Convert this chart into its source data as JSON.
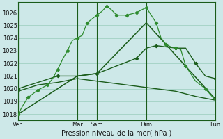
{
  "xlabel": "Pression niveau de la mer( hPa )",
  "bg_color": "#cde8e8",
  "grid_color": "#99ccbb",
  "line_color_dark": "#1a5c1a",
  "line_color_light": "#2e8b2e",
  "ylim": [
    1017.5,
    1026.8
  ],
  "xlim": [
    0,
    20
  ],
  "yticks": [
    1018,
    1019,
    1020,
    1021,
    1022,
    1023,
    1024,
    1025,
    1026
  ],
  "day_vlines": [
    0,
    6,
    8,
    13,
    20
  ],
  "xtick_positions": [
    0,
    6,
    8,
    13,
    20
  ],
  "xtick_labels": [
    "Ven",
    "Mar",
    "Sam",
    "Dim",
    "Lun"
  ],
  "s1_x": [
    0,
    0.5,
    1,
    1.5,
    2,
    2.5,
    3,
    3.5,
    4,
    4.5,
    5,
    5.5,
    6,
    6.5,
    7,
    7.5,
    8,
    8.5,
    9,
    9.5,
    10,
    10.5,
    11,
    11.5,
    12,
    12.5,
    13,
    13.5,
    14,
    14.5,
    15,
    15.5,
    16,
    16.5,
    17,
    18,
    19,
    20
  ],
  "s1_y": [
    1018.0,
    1018.7,
    1019.3,
    1019.6,
    1019.9,
    1020.1,
    1020.3,
    1020.8,
    1021.5,
    1022.3,
    1023.0,
    1023.8,
    1024.0,
    1024.2,
    1025.2,
    1025.5,
    1025.8,
    1026.1,
    1026.5,
    1026.2,
    1025.8,
    1025.8,
    1025.8,
    1025.9,
    1026.0,
    1026.2,
    1026.4,
    1025.8,
    1025.2,
    1024.0,
    1023.5,
    1023.3,
    1023.2,
    1023.1,
    1021.8,
    1020.6,
    1020.0,
    1019.1
  ],
  "s2_x": [
    0,
    6,
    8,
    13,
    20
  ],
  "s2_y": [
    1018.0,
    1021.0,
    1021.2,
    1025.2,
    1019.2
  ],
  "s3_x": [
    0,
    2,
    4,
    6,
    8,
    10,
    12,
    13,
    14,
    15,
    16,
    17,
    18,
    19,
    20
  ],
  "s3_y": [
    1020.0,
    1020.5,
    1021.0,
    1021.0,
    1021.2,
    1021.8,
    1022.4,
    1023.2,
    1023.4,
    1023.3,
    1023.2,
    1023.2,
    1022.0,
    1021.0,
    1020.8
  ],
  "s4_x": [
    0,
    2,
    4,
    6,
    8,
    10,
    12,
    14,
    16,
    18,
    20
  ],
  "s4_y": [
    1019.8,
    1020.3,
    1020.5,
    1020.8,
    1020.6,
    1020.4,
    1020.2,
    1020.0,
    1019.8,
    1019.4,
    1019.1
  ]
}
